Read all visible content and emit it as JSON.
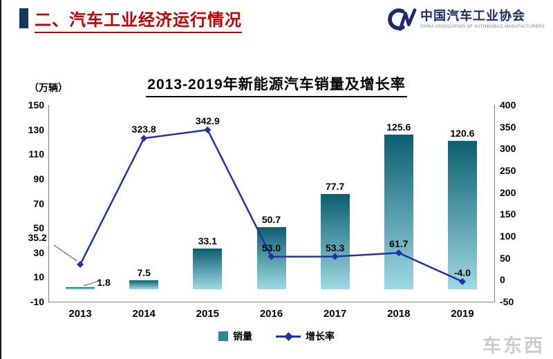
{
  "slide": {
    "header": {
      "title": "二、汽车工业经济运行情况",
      "title_color": "#C00000",
      "accent_color": "#17375E"
    },
    "logo": {
      "name": "中国汽车工业协会",
      "subtitle": "CHINA ASSOCIATION OF AUTOMOBILE MANUFACTURERS",
      "color": "#1B2A6B"
    },
    "watermark": "车东西"
  },
  "chart_data": {
    "type": "combo-bar-line",
    "title": "2013-2019年新能源汽车销量及增长率",
    "unit_label": "（万辆）",
    "categories": [
      "2013",
      "2014",
      "2015",
      "2016",
      "2017",
      "2018",
      "2019"
    ],
    "series": [
      {
        "name": "销量",
        "type": "bar",
        "axis": "left",
        "unit": "万辆",
        "values": [
          1.8,
          7.5,
          33.1,
          50.7,
          77.7,
          125.6,
          120.6
        ],
        "labels": [
          "1.8",
          "7.5",
          "33.1",
          "50.7",
          "77.7",
          "125.6",
          "120.6"
        ],
        "color": "#31859B",
        "gradient_top": "#0B5E70",
        "gradient_bottom": "#9FD9E3"
      },
      {
        "name": "增长率",
        "type": "line",
        "axis": "right",
        "unit": "%",
        "values": [
          35.2,
          323.8,
          342.9,
          53.0,
          53.3,
          61.7,
          -4.0
        ],
        "labels": [
          "35.2",
          "323.8",
          "342.9",
          "53.0",
          "53.3",
          "61.7",
          "-4.0"
        ],
        "color": "#2430A6",
        "marker": "diamond"
      }
    ],
    "left_axis": {
      "min": -10,
      "max": 150,
      "step": 20,
      "ticks": [
        -10,
        10,
        30,
        50,
        70,
        90,
        110,
        130,
        150
      ]
    },
    "right_axis": {
      "min": -50,
      "max": 400,
      "step": 50,
      "ticks": [
        -50,
        0,
        50,
        100,
        150,
        200,
        250,
        300,
        350,
        400
      ]
    },
    "legend": [
      "销量",
      "增长率"
    ],
    "legend_position": "bottom",
    "grid": false
  }
}
